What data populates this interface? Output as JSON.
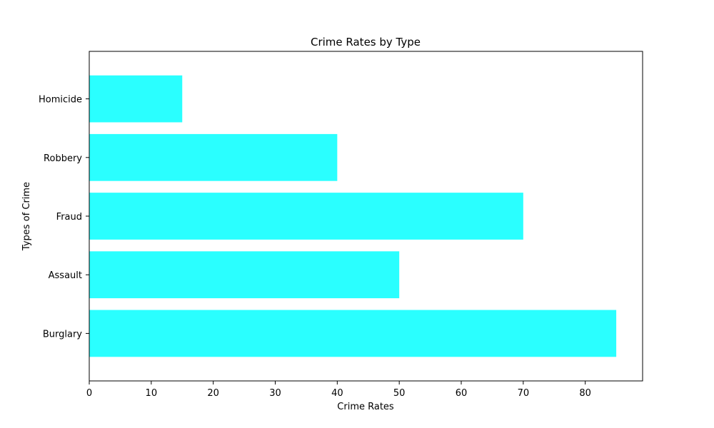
{
  "chart_data": {
    "type": "bar",
    "orientation": "horizontal",
    "title": "Crime Rates by Type",
    "xlabel": "Crime Rates",
    "ylabel": "Types of Crime",
    "categories": [
      "Burglary",
      "Assault",
      "Fraud",
      "Robbery",
      "Homicide"
    ],
    "values": [
      85,
      50,
      70,
      40,
      15
    ],
    "xlim": [
      0,
      89.25
    ],
    "xticks": [
      0,
      10,
      20,
      30,
      40,
      50,
      60,
      70,
      80
    ],
    "bar_color": "#2affff",
    "grid": false,
    "legend": "none"
  }
}
